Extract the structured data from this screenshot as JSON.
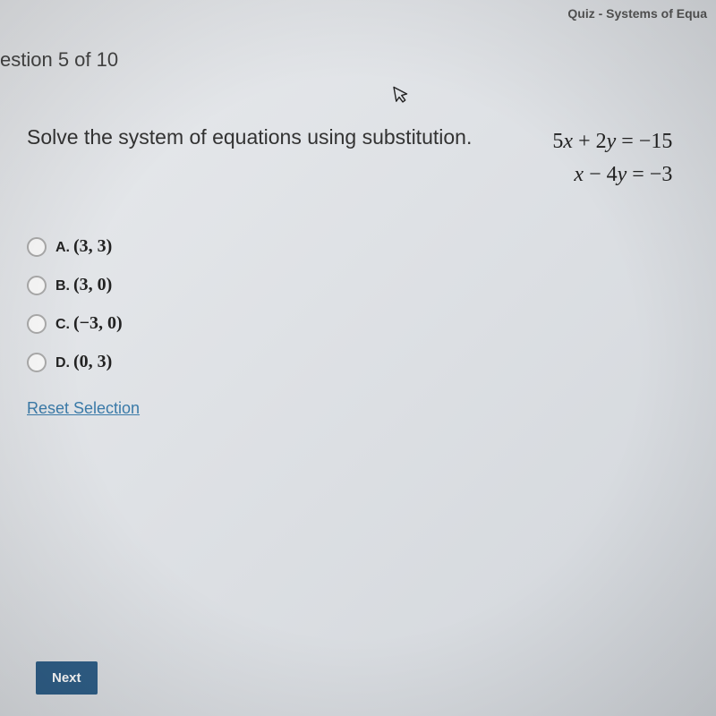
{
  "header": {
    "breadcrumb_fragment": "Quiz - Systems of Equa"
  },
  "question": {
    "counter": "estion 5 of 10",
    "prompt": "Solve the system of equations using substitution.",
    "equation1_html": "5<span class='var'>x</span> + 2<span class='var'>y</span> = −15",
    "equation2_html": "<span class='var'>x</span> − 4<span class='var'>y</span> = −3"
  },
  "choices": [
    {
      "letter": "A.",
      "value": "(3, 3)"
    },
    {
      "letter": "B.",
      "value": "(3, 0)"
    },
    {
      "letter": "C.",
      "value": "(−3, 0)"
    },
    {
      "letter": "D.",
      "value": "(0, 3)"
    }
  ],
  "actions": {
    "reset": "Reset Selection",
    "next": "Next"
  },
  "style": {
    "accent_color": "#2f5f88",
    "link_color": "#3a7aa8",
    "text_color": "#333333",
    "radio_border": "#aaaaaa"
  }
}
